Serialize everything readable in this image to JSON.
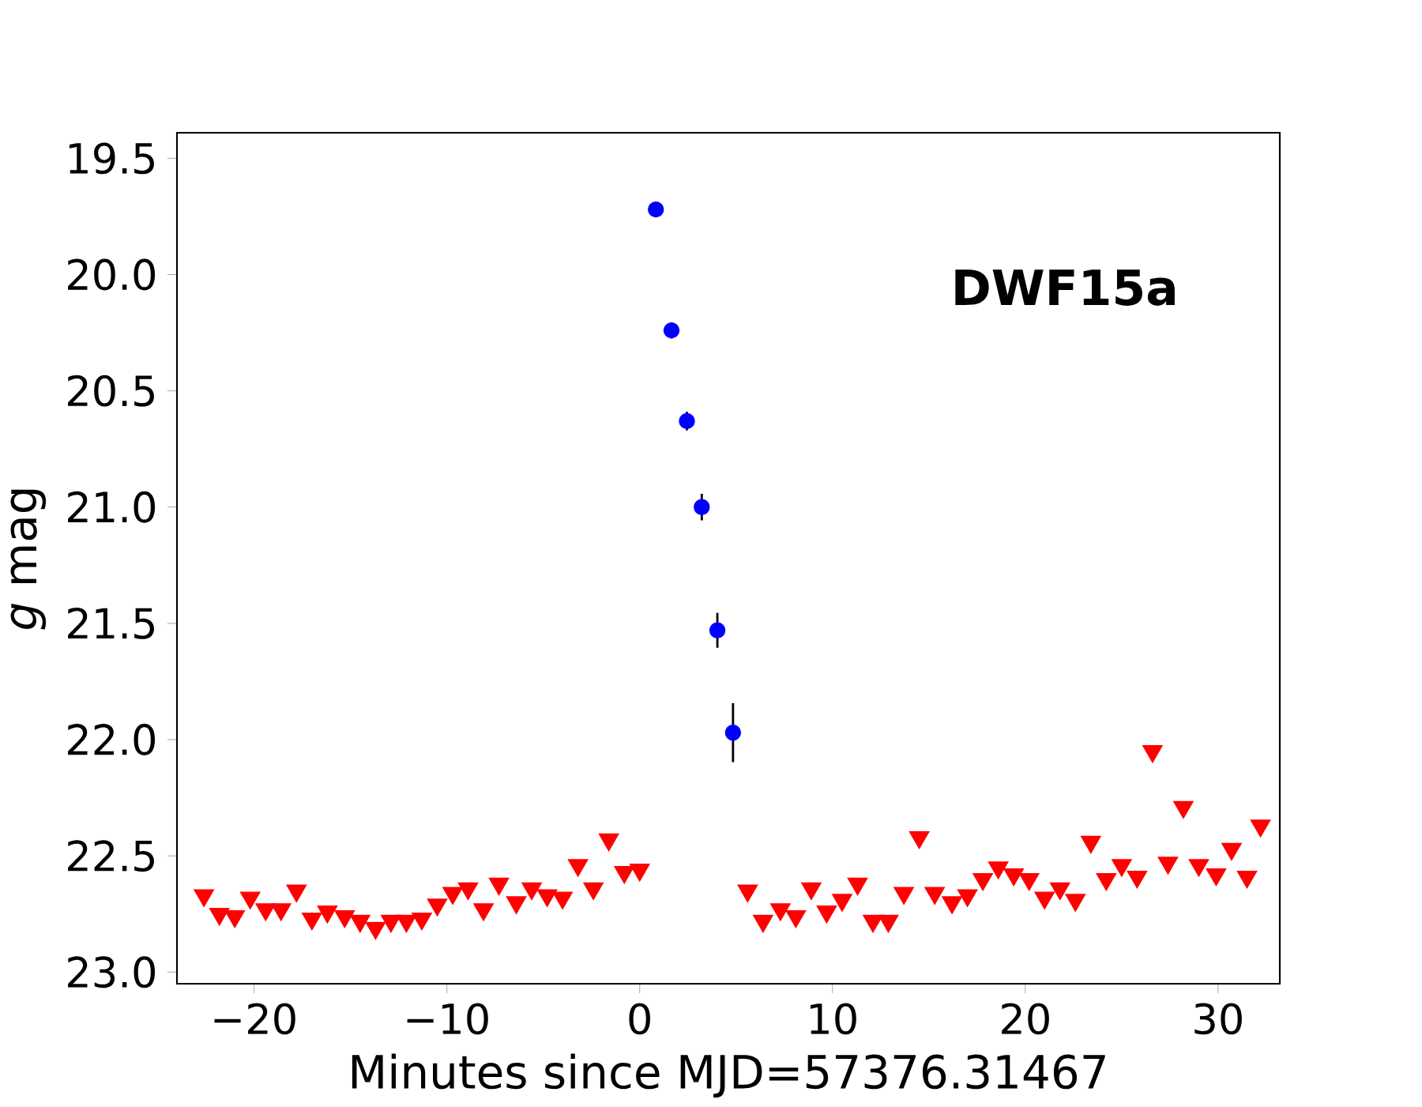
{
  "chart_data": {
    "type": "scatter",
    "xlabel": "Minutes since MJD=57376.31467",
    "ylabel": "*g* mag",
    "annotations": [
      "DWF15a"
    ],
    "xlim": [
      -24.0,
      33.2
    ],
    "ylim": [
      23.05,
      19.39
    ],
    "xticks": [
      {
        "value": -20,
        "label": "−20"
      },
      {
        "value": -10,
        "label": "−10"
      },
      0,
      10,
      20,
      30
    ],
    "yticks": [
      {
        "value": 19.5,
        "label": "19.5"
      },
      {
        "value": 20.0,
        "label": "20.0"
      },
      {
        "value": 20.5,
        "label": "20.5"
      },
      {
        "value": 21.0,
        "label": "21.0"
      },
      {
        "value": 21.5,
        "label": "21.5"
      },
      {
        "value": 22.0,
        "label": "22.0"
      },
      {
        "value": 22.5,
        "label": "22.5"
      },
      {
        "value": 23.0,
        "label": "23.0"
      }
    ],
    "grid": false,
    "series": [
      {
        "color": "#ff0000",
        "marker": "triangle",
        "x": [
          -22.6,
          -21.8,
          -21.0,
          -20.2,
          -19.4,
          -18.6,
          -17.8,
          -17.0,
          -16.2,
          -15.3,
          -14.5,
          -13.7,
          -12.9,
          -12.1,
          -11.3,
          -10.5,
          -9.7,
          -8.9,
          -8.1,
          -7.3,
          -6.4,
          -5.6,
          -4.8,
          -4.0,
          -3.2,
          -2.4,
          -1.6,
          -0.8,
          0.0,
          5.6,
          6.4,
          7.3,
          8.1,
          8.9,
          9.7,
          10.5,
          11.3,
          12.1,
          12.9,
          13.7,
          14.5,
          15.3,
          16.2,
          17.0,
          17.8,
          18.6,
          19.4,
          20.2,
          21.0,
          21.8,
          22.6,
          23.4,
          24.2,
          25.0,
          25.8,
          26.6,
          27.4,
          28.2,
          29.0,
          29.9,
          30.7,
          31.5,
          32.2
        ],
        "values": [
          22.67,
          22.75,
          22.76,
          22.68,
          22.73,
          22.73,
          22.65,
          22.77,
          22.74,
          22.76,
          22.78,
          22.81,
          22.78,
          22.78,
          22.77,
          22.71,
          22.66,
          22.64,
          22.73,
          22.62,
          22.7,
          22.64,
          22.67,
          22.68,
          22.54,
          22.64,
          22.43,
          22.57,
          22.56,
          22.65,
          22.78,
          22.73,
          22.76,
          22.64,
          22.74,
          22.69,
          22.62,
          22.78,
          22.78,
          22.66,
          22.42,
          22.66,
          22.7,
          22.67,
          22.6,
          22.55,
          22.58,
          22.6,
          22.68,
          22.64,
          22.69,
          22.44,
          22.6,
          22.54,
          22.59,
          22.05,
          22.53,
          22.29,
          22.54,
          22.58,
          22.47,
          22.59,
          22.37
        ]
      },
      {
        "color": "#0000ff",
        "marker": "circle",
        "x": [
          0.84,
          1.65,
          2.45,
          3.22,
          4.03,
          4.84
        ],
        "values": [
          19.72,
          20.24,
          20.63,
          21.0,
          21.53,
          21.97
        ],
        "errors": [
          null,
          0.035,
          0.04,
          0.057,
          0.075,
          0.127
        ]
      }
    ]
  }
}
